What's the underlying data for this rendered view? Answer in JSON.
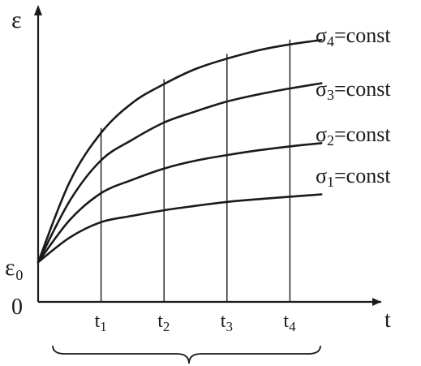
{
  "chart_data": {
    "type": "line",
    "title": "",
    "xlabel": "t",
    "ylabel": "ε",
    "origin_label": "0",
    "y0_label": "ε₀",
    "y0_value": 0,
    "xlim": [
      0,
      5
    ],
    "ylim": [
      -1.0,
      6.2
    ],
    "grid": false,
    "ticks": [
      {
        "label": "t₁",
        "base": "t",
        "sub": "1",
        "x": 1
      },
      {
        "label": "t₂",
        "base": "t",
        "sub": "2",
        "x": 2
      },
      {
        "label": "t₃",
        "base": "t",
        "sub": "3",
        "x": 3
      },
      {
        "label": "t₄",
        "base": "t",
        "sub": "4",
        "x": 4
      }
    ],
    "x": [
      0,
      0.5,
      1,
      1.5,
      2,
      2.5,
      3,
      3.5,
      4,
      4.5
    ],
    "series": [
      {
        "name": "σ₁=const",
        "base": "σ",
        "sub": "1",
        "suffix": "=const",
        "values": [
          0,
          0.62,
          1.01,
          1.17,
          1.31,
          1.42,
          1.52,
          1.59,
          1.65,
          1.71
        ]
      },
      {
        "name": "σ₂=const",
        "base": "σ",
        "sub": "2",
        "suffix": "=const",
        "values": [
          0,
          1.06,
          1.74,
          2.08,
          2.36,
          2.56,
          2.7,
          2.82,
          2.92,
          3.0
        ]
      },
      {
        "name": "σ₃=const",
        "base": "σ",
        "sub": "3",
        "suffix": "=const",
        "values": [
          0,
          1.54,
          2.57,
          3.09,
          3.52,
          3.8,
          4.05,
          4.23,
          4.38,
          4.51
        ]
      },
      {
        "name": "σ₄=const",
        "base": "σ",
        "sub": "4",
        "suffix": "=const",
        "values": [
          0,
          2.02,
          3.26,
          4.02,
          4.49,
          4.87,
          5.13,
          5.34,
          5.49,
          5.6
        ]
      }
    ]
  }
}
